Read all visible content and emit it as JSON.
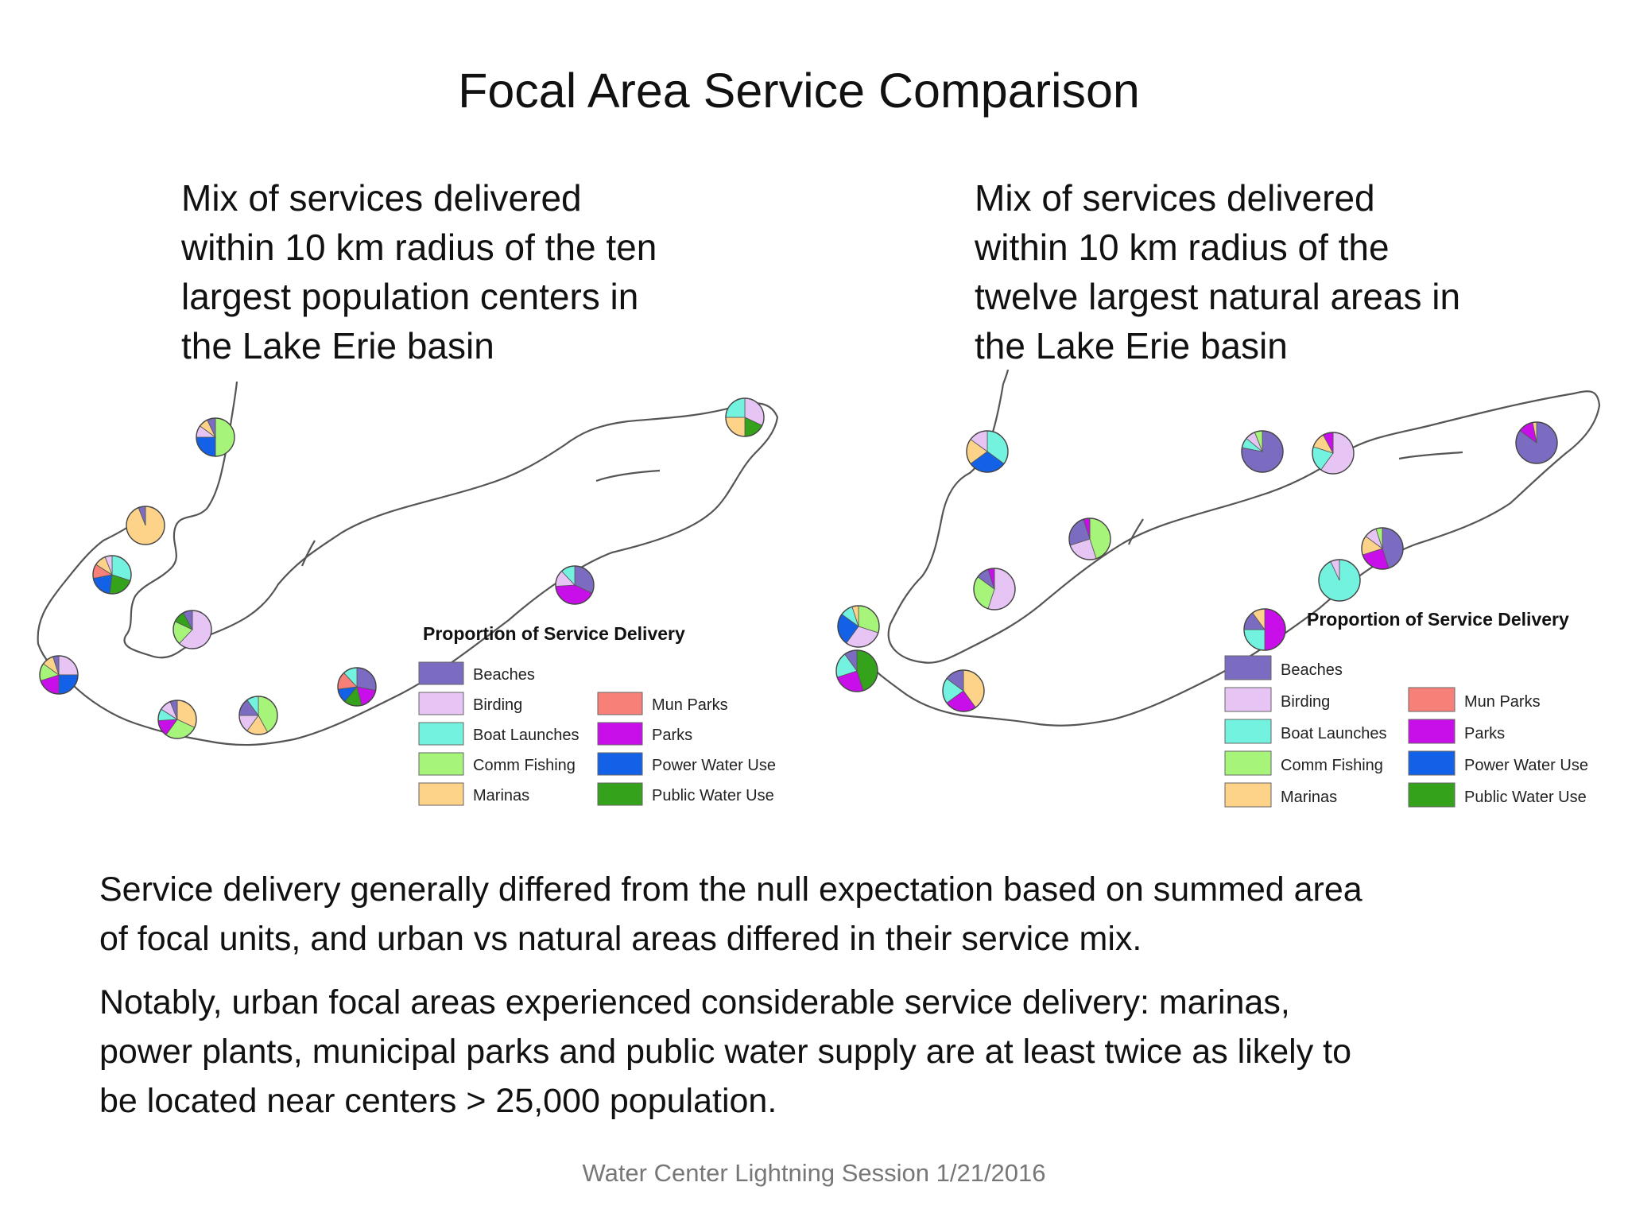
{
  "title": "Focal Area Service Comparison",
  "left_panel": {
    "caption_lines": [
      "Mix of services delivered",
      "within 10 km radius of the ten",
      "largest population centers in",
      "the Lake Erie basin"
    ],
    "legend_title": "Proportion of Service Delivery",
    "pies": [
      {
        "slices": [
          [
            "Comm Fishing",
            0.5
          ],
          [
            "Power Water Use",
            0.25
          ],
          [
            "Birding",
            0.1
          ],
          [
            "Marinas",
            0.08
          ],
          [
            "Beaches",
            0.07
          ]
        ]
      },
      {
        "slices": [
          [
            "Marinas",
            0.94
          ],
          [
            "Beaches",
            0.06
          ]
        ]
      },
      {
        "slices": [
          [
            "Boat Launches",
            0.3
          ],
          [
            "Public Water Use",
            0.22
          ],
          [
            "Power Water Use",
            0.2
          ],
          [
            "Mun Parks",
            0.12
          ],
          [
            "Marinas",
            0.1
          ],
          [
            "Birding",
            0.06
          ]
        ]
      },
      {
        "slices": [
          [
            "Birding",
            0.62
          ],
          [
            "Comm Fishing",
            0.2
          ],
          [
            "Public Water Use",
            0.1
          ],
          [
            "Beaches",
            0.08
          ]
        ]
      },
      {
        "slices": [
          [
            "Birding",
            0.25
          ],
          [
            "Power Water Use",
            0.25
          ],
          [
            "Parks",
            0.2
          ],
          [
            "Comm Fishing",
            0.15
          ],
          [
            "Marinas",
            0.1
          ],
          [
            "Beaches",
            0.05
          ]
        ]
      },
      {
        "slices": [
          [
            "Marinas",
            0.32
          ],
          [
            "Comm Fishing",
            0.28
          ],
          [
            "Parks",
            0.14
          ],
          [
            "Boat Launches",
            0.1
          ],
          [
            "Birding",
            0.1
          ],
          [
            "Beaches",
            0.06
          ]
        ]
      },
      {
        "slices": [
          [
            "Comm Fishing",
            0.42
          ],
          [
            "Marinas",
            0.18
          ],
          [
            "Birding",
            0.15
          ],
          [
            "Beaches",
            0.15
          ],
          [
            "Boat Launches",
            0.1
          ]
        ]
      },
      {
        "slices": [
          [
            "Beaches",
            0.28
          ],
          [
            "Parks",
            0.18
          ],
          [
            "Public Water Use",
            0.15
          ],
          [
            "Power Water Use",
            0.12
          ],
          [
            "Mun Parks",
            0.15
          ],
          [
            "Boat Launches",
            0.12
          ]
        ]
      },
      {
        "slices": [
          [
            "Beaches",
            0.32
          ],
          [
            "Parks",
            0.42
          ],
          [
            "Birding",
            0.14
          ],
          [
            "Boat Launches",
            0.12
          ]
        ]
      },
      {
        "slices": [
          [
            "Birding",
            0.32
          ],
          [
            "Public Water Use",
            0.18
          ],
          [
            "Marinas",
            0.25
          ],
          [
            "Boat Launches",
            0.25
          ]
        ]
      }
    ],
    "legend": [
      {
        "label": "Beaches",
        "color": "#7b6cc2"
      },
      {
        "label": "Birding",
        "color": "#e6c4f4"
      },
      {
        "label": "Boat Launches",
        "color": "#73f2df"
      },
      {
        "label": "Comm Fishing",
        "color": "#a6f57a"
      },
      {
        "label": "Marinas",
        "color": "#fdd38a"
      },
      {
        "label": "Mun Parks",
        "color": "#f78179"
      },
      {
        "label": "Parks",
        "color": "#c80fe9"
      },
      {
        "label": "Power Water Use",
        "color": "#1361e6"
      },
      {
        "label": "Public Water Use",
        "color": "#34a21a"
      }
    ]
  },
  "right_panel": {
    "caption_lines": [
      "Mix of services delivered",
      "within 10 km radius of the",
      "twelve largest natural areas in",
      "the Lake Erie basin"
    ],
    "legend_title": "Proportion of Service Delivery",
    "pies": [
      {
        "slices": [
          [
            "Boat Launches",
            0.35
          ],
          [
            "Power Water Use",
            0.3
          ],
          [
            "Marinas",
            0.2
          ],
          [
            "Birding",
            0.15
          ]
        ]
      },
      {
        "slices": [
          [
            "Comm Fishing",
            0.3
          ],
          [
            "Birding",
            0.3
          ],
          [
            "Power Water Use",
            0.25
          ],
          [
            "Boat Launches",
            0.1
          ],
          [
            "Marinas",
            0.05
          ]
        ]
      },
      {
        "slices": [
          [
            "Public Water Use",
            0.45
          ],
          [
            "Parks",
            0.25
          ],
          [
            "Boat Launches",
            0.2
          ],
          [
            "Beaches",
            0.1
          ]
        ]
      },
      {
        "slices": [
          [
            "Marinas",
            0.4
          ],
          [
            "Parks",
            0.25
          ],
          [
            "Boat Launches",
            0.2
          ],
          [
            "Beaches",
            0.15
          ]
        ]
      },
      {
        "slices": [
          [
            "Birding",
            0.55
          ],
          [
            "Comm Fishing",
            0.3
          ],
          [
            "Beaches",
            0.1
          ],
          [
            "Parks",
            0.05
          ]
        ]
      },
      {
        "slices": [
          [
            "Comm Fishing",
            0.45
          ],
          [
            "Birding",
            0.25
          ],
          [
            "Beaches",
            0.25
          ],
          [
            "Parks",
            0.05
          ]
        ]
      },
      {
        "slices": [
          [
            "Beaches",
            0.78
          ],
          [
            "Boat Launches",
            0.08
          ],
          [
            "Birding",
            0.08
          ],
          [
            "Comm Fishing",
            0.06
          ]
        ]
      },
      {
        "slices": [
          [
            "Birding",
            0.6
          ],
          [
            "Boat Launches",
            0.2
          ],
          [
            "Marinas",
            0.12
          ],
          [
            "Parks",
            0.08
          ]
        ]
      },
      {
        "slices": [
          [
            "Parks",
            0.5
          ],
          [
            "Boat Launches",
            0.25
          ],
          [
            "Beaches",
            0.15
          ],
          [
            "Marinas",
            0.1
          ]
        ]
      },
      {
        "slices": [
          [
            "Boat Launches",
            0.93
          ],
          [
            "Birding",
            0.07
          ]
        ]
      },
      {
        "slices": [
          [
            "Beaches",
            0.45
          ],
          [
            "Parks",
            0.25
          ],
          [
            "Marinas",
            0.15
          ],
          [
            "Birding",
            0.1
          ],
          [
            "Comm Fishing",
            0.05
          ]
        ]
      },
      {
        "slices": [
          [
            "Beaches",
            0.85
          ],
          [
            "Parks",
            0.12
          ],
          [
            "Marinas",
            0.03
          ]
        ]
      }
    ],
    "legend": [
      {
        "label": "Beaches",
        "color": "#7b6cc2"
      },
      {
        "label": "Birding",
        "color": "#e6c4f4"
      },
      {
        "label": "Boat Launches",
        "color": "#73f2df"
      },
      {
        "label": "Comm Fishing",
        "color": "#a6f57a"
      },
      {
        "label": "Marinas",
        "color": "#fdd38a"
      },
      {
        "label": "Mun Parks",
        "color": "#f78179"
      },
      {
        "label": "Parks",
        "color": "#c80fe9"
      },
      {
        "label": "Power Water Use",
        "color": "#1361e6"
      },
      {
        "label": "Public Water Use",
        "color": "#34a21a"
      }
    ]
  },
  "paragraphs": [
    [
      "Service delivery generally differed from the null expectation based on summed area",
      "of focal units, and urban vs natural areas differed in their service mix."
    ],
    [
      "Notably, urban focal areas experienced considerable service delivery: marinas,",
      "power plants, municipal parks and public water supply are at least twice as likely to",
      "be located near centers > 25,000 population."
    ]
  ],
  "footer": "Water Center Lightning Session 1/21/2016"
}
